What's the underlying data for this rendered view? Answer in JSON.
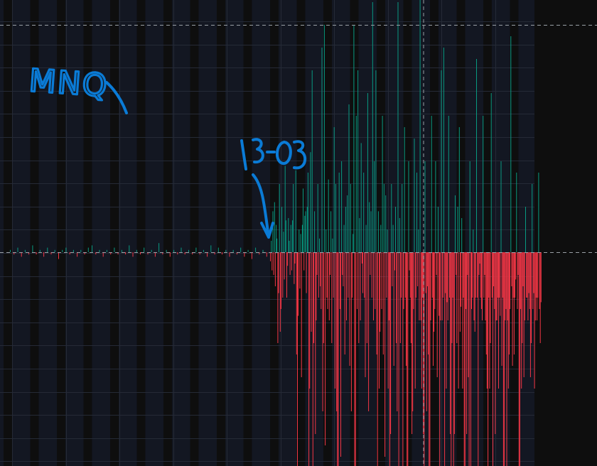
{
  "chart_data": {
    "type": "bar",
    "symbol": "MNQ",
    "annotations": [
      "MNQ",
      "13-03"
    ],
    "baseline": 0,
    "grid": true,
    "colors": {
      "up": "#089981",
      "down": "#f23645",
      "neutral": "#8a8a8a",
      "annotation": "#0a7bd6",
      "panel": "#131722",
      "stripe": "#0e0e0e"
    },
    "quiet_values": [
      1,
      -1,
      2,
      -2,
      1,
      -1,
      3,
      -1,
      1,
      -2,
      2,
      -1,
      1,
      -3,
      1,
      2,
      -1,
      1,
      -2,
      1,
      -1,
      2,
      3,
      -1,
      1,
      -2,
      1,
      -1,
      2,
      -1,
      1,
      -1,
      3,
      -2,
      1,
      -1,
      2,
      -1,
      1,
      -2,
      4,
      -1,
      1,
      -2,
      1,
      -1,
      2,
      -1,
      1,
      -1,
      2,
      -1,
      1,
      -2,
      3,
      -1,
      2,
      -1,
      1,
      -2,
      1,
      -1,
      2,
      -2,
      1,
      -3,
      2,
      -1,
      1,
      -2
    ],
    "active_values": [
      -4,
      5,
      -8,
      18,
      -10,
      22,
      -15,
      12,
      6,
      -40,
      -18,
      30,
      -35,
      -25,
      20,
      -20,
      9,
      -12,
      38,
      14,
      -20,
      -6,
      15,
      5,
      -10,
      12,
      -8,
      14,
      30,
      -14,
      -5,
      36,
      -45,
      -100,
      -28,
      10,
      -16,
      8,
      -55,
      12,
      28,
      -8,
      16,
      18,
      -18,
      20,
      35,
      -95,
      -60,
      44,
      -35,
      80,
      -110,
      -40,
      18,
      -80,
      -30,
      -10,
      30,
      -20,
      6,
      -15,
      -25,
      90,
      -70,
      -40,
      100,
      -85,
      10,
      -20,
      -25,
      32,
      -30,
      -10,
      18,
      -40,
      6,
      -20,
      55,
      -60,
      30,
      -70,
      -100,
      -110,
      35,
      -25,
      -90,
      40,
      -10,
      -15,
      12,
      -45,
      20,
      -30,
      25,
      -20,
      65,
      -50,
      30,
      -70,
      -20,
      8,
      100,
      -95,
      -110,
      60,
      -25,
      80,
      -40,
      15,
      -30,
      48,
      -5,
      -18,
      35,
      -20,
      -55,
      12,
      -40,
      70,
      -70,
      22,
      -10,
      18,
      -20,
      110,
      -30,
      40,
      -25,
      80,
      -45,
      -100,
      18,
      -60,
      -35,
      12,
      -25,
      60,
      -45,
      30,
      -90,
      25,
      -20,
      10,
      -60,
      -30,
      -100,
      -80,
      30,
      -15,
      12,
      -50,
      -8,
      20,
      -40,
      -70,
      110,
      -110,
      15,
      -40,
      -20,
      30,
      -100,
      -25,
      55,
      -20,
      -50,
      -100,
      -100,
      40,
      -8,
      -20,
      -40,
      -80,
      -70,
      -25,
      50,
      -60,
      -20,
      35,
      -15,
      10,
      -30,
      115,
      -30,
      -60,
      -20,
      -80,
      -95,
      40,
      -18,
      -70,
      -15,
      -45,
      -100,
      -100,
      -30,
      60,
      -20,
      -50,
      -35,
      -25,
      40,
      -10,
      -55,
      20,
      -28,
      -100,
      -30,
      80,
      -30,
      -20,
      90,
      -100,
      -18,
      -60,
      -22,
      -30,
      60,
      -20,
      -80,
      -100,
      -40,
      -20,
      -110,
      -80,
      25,
      -10,
      -40,
      20,
      -60,
      55,
      -35,
      -24,
      15,
      -60,
      -20,
      -100,
      -100,
      -25,
      -80,
      -10,
      -55,
      -100,
      40,
      -100,
      -25,
      -20,
      10,
      -30,
      -35,
      -20,
      85,
      -20,
      -110,
      -10,
      -5,
      -20,
      -25,
      -30,
      60,
      -20,
      -10,
      -30,
      -45,
      -60,
      -110,
      -20,
      -60,
      -40,
      70,
      -20,
      -100,
      -15,
      -25,
      -80,
      -30,
      -30,
      -20,
      -60,
      -20,
      -28,
      40,
      -50,
      -20,
      -100,
      -110,
      -30,
      -25,
      -100,
      -30,
      -60,
      -45,
      -25,
      95,
      -15,
      -50,
      -20,
      -45,
      -20,
      -12,
      35,
      -25,
      -10,
      -110,
      -100,
      -25,
      -60,
      -40,
      -15,
      -55,
      -30,
      20,
      -20,
      -20,
      -30,
      -18,
      -25,
      -55,
      -40,
      30,
      -25,
      -18,
      -60,
      -30,
      -20,
      -30,
      -20,
      35,
      -25,
      -40,
      -22
    ]
  }
}
